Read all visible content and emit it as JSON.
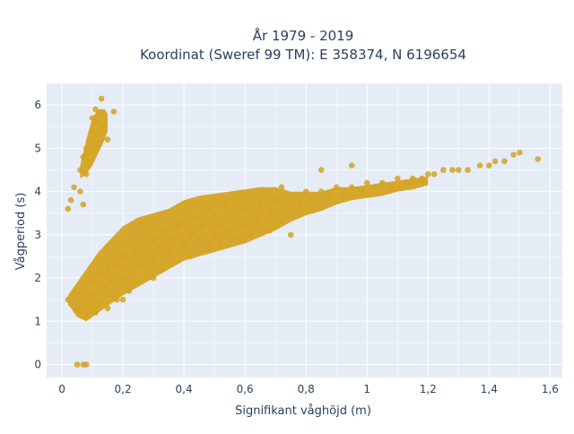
{
  "chart_data": {
    "type": "scatter",
    "title_line1": "År 1979 - 2019",
    "title_line2": "Koordinat (Sweref 99 TM): E 358374, N 6196654",
    "xlabel": "Signifikant våghöjd (m)",
    "ylabel": "Vågperiod (s)",
    "xlim": [
      -0.05,
      1.64
    ],
    "ylim": [
      -0.3,
      6.5
    ],
    "x_ticks": [
      0,
      0.2,
      0.4,
      0.6,
      0.8,
      1.0,
      1.2,
      1.4,
      1.6
    ],
    "x_tick_labels": [
      "0",
      "0,2",
      "0,4",
      "0,6",
      "0,8",
      "1",
      "1,2",
      "1,4",
      "1,6"
    ],
    "y_ticks": [
      0,
      1,
      2,
      3,
      4,
      5,
      6
    ],
    "y_tick_labels": [
      "0",
      "1",
      "2",
      "3",
      "4",
      "5",
      "6"
    ],
    "grid": true,
    "plot_background": "#e5ecf6",
    "marker_color": "#d4a321",
    "series": [
      {
        "points": [
          [
            0.02,
            1.5
          ],
          [
            0.03,
            1.4
          ],
          [
            0.04,
            1.6
          ],
          [
            0.05,
            1.3
          ],
          [
            0.06,
            1.2
          ],
          [
            0.07,
            1.5
          ],
          [
            0.08,
            1.1
          ],
          [
            0.09,
            1.3
          ],
          [
            0.1,
            1.6
          ],
          [
            0.11,
            1.2
          ],
          [
            0.12,
            1.4
          ],
          [
            0.1,
            1.9
          ],
          [
            0.12,
            2.1
          ],
          [
            0.14,
            1.8
          ],
          [
            0.15,
            2.2
          ],
          [
            0.16,
            1.9
          ],
          [
            0.18,
            2.3
          ],
          [
            0.2,
            2.0
          ],
          [
            0.2,
            2.5
          ],
          [
            0.22,
            2.2
          ],
          [
            0.24,
            2.6
          ],
          [
            0.25,
            2.3
          ],
          [
            0.26,
            2.8
          ],
          [
            0.28,
            2.5
          ],
          [
            0.3,
            2.9
          ],
          [
            0.3,
            2.4
          ],
          [
            0.32,
            2.7
          ],
          [
            0.34,
            3.1
          ],
          [
            0.35,
            2.6
          ],
          [
            0.36,
            2.9
          ],
          [
            0.38,
            3.2
          ],
          [
            0.4,
            2.8
          ],
          [
            0.4,
            3.3
          ],
          [
            0.42,
            3.0
          ],
          [
            0.44,
            3.4
          ],
          [
            0.45,
            2.9
          ],
          [
            0.46,
            3.2
          ],
          [
            0.48,
            3.6
          ],
          [
            0.5,
            3.0
          ],
          [
            0.5,
            3.5
          ],
          [
            0.52,
            3.2
          ],
          [
            0.54,
            3.7
          ],
          [
            0.55,
            3.1
          ],
          [
            0.56,
            3.4
          ],
          [
            0.58,
            3.8
          ],
          [
            0.6,
            3.2
          ],
          [
            0.6,
            3.6
          ],
          [
            0.62,
            3.9
          ],
          [
            0.64,
            3.4
          ],
          [
            0.65,
            3.7
          ],
          [
            0.66,
            4.0
          ],
          [
            0.68,
            3.5
          ],
          [
            0.7,
            3.8
          ],
          [
            0.72,
            4.1
          ],
          [
            0.74,
            3.6
          ],
          [
            0.75,
            3.9
          ],
          [
            0.78,
            3.7
          ],
          [
            0.8,
            4.0
          ],
          [
            0.82,
            3.8
          ],
          [
            0.85,
            4.0
          ],
          [
            0.88,
            3.9
          ],
          [
            0.9,
            4.1
          ],
          [
            0.92,
            3.9
          ],
          [
            0.95,
            4.1
          ],
          [
            0.98,
            4.0
          ],
          [
            1.0,
            4.2
          ],
          [
            1.03,
            4.1
          ],
          [
            1.05,
            4.2
          ],
          [
            1.08,
            4.1
          ],
          [
            1.1,
            4.3
          ],
          [
            1.13,
            4.2
          ],
          [
            1.15,
            4.3
          ],
          [
            1.18,
            4.3
          ],
          [
            1.2,
            4.4
          ],
          [
            1.22,
            4.4
          ],
          [
            1.25,
            4.5
          ],
          [
            1.28,
            4.5
          ],
          [
            1.3,
            4.5
          ],
          [
            1.33,
            4.5
          ],
          [
            1.37,
            4.6
          ],
          [
            1.4,
            4.6
          ],
          [
            1.42,
            4.7
          ],
          [
            1.45,
            4.7
          ],
          [
            1.48,
            4.85
          ],
          [
            1.5,
            4.9
          ],
          [
            1.56,
            4.75
          ],
          [
            0.85,
            4.5
          ],
          [
            0.95,
            4.6
          ],
          [
            0.2,
            1.5
          ],
          [
            0.22,
            1.7
          ],
          [
            0.25,
            1.9
          ],
          [
            0.3,
            2.0
          ],
          [
            0.33,
            2.2
          ],
          [
            0.38,
            2.4
          ],
          [
            0.42,
            2.5
          ],
          [
            0.48,
            2.7
          ],
          [
            0.52,
            2.8
          ],
          [
            0.58,
            2.9
          ],
          [
            0.62,
            3.0
          ],
          [
            0.68,
            3.1
          ],
          [
            0.72,
            3.3
          ],
          [
            0.75,
            3.0
          ],
          [
            0.15,
            1.3
          ],
          [
            0.18,
            1.5
          ],
          [
            0.06,
            4.5
          ],
          [
            0.07,
            4.8
          ],
          [
            0.08,
            5.0
          ],
          [
            0.09,
            5.2
          ],
          [
            0.1,
            5.4
          ],
          [
            0.11,
            5.6
          ],
          [
            0.12,
            5.8
          ],
          [
            0.13,
            5.5
          ],
          [
            0.08,
            4.4
          ],
          [
            0.09,
            4.7
          ],
          [
            0.1,
            5.0
          ],
          [
            0.11,
            5.3
          ],
          [
            0.12,
            5.1
          ],
          [
            0.1,
            5.7
          ],
          [
            0.11,
            5.9
          ],
          [
            0.13,
            6.15
          ],
          [
            0.04,
            4.1
          ],
          [
            0.03,
            3.8
          ],
          [
            0.02,
            3.6
          ],
          [
            0.06,
            4.0
          ],
          [
            0.07,
            3.7
          ],
          [
            0.17,
            5.85
          ],
          [
            0.15,
            5.2
          ],
          [
            0.05,
            0.0
          ],
          [
            0.07,
            0.0
          ],
          [
            0.08,
            0.0
          ]
        ]
      }
    ]
  }
}
